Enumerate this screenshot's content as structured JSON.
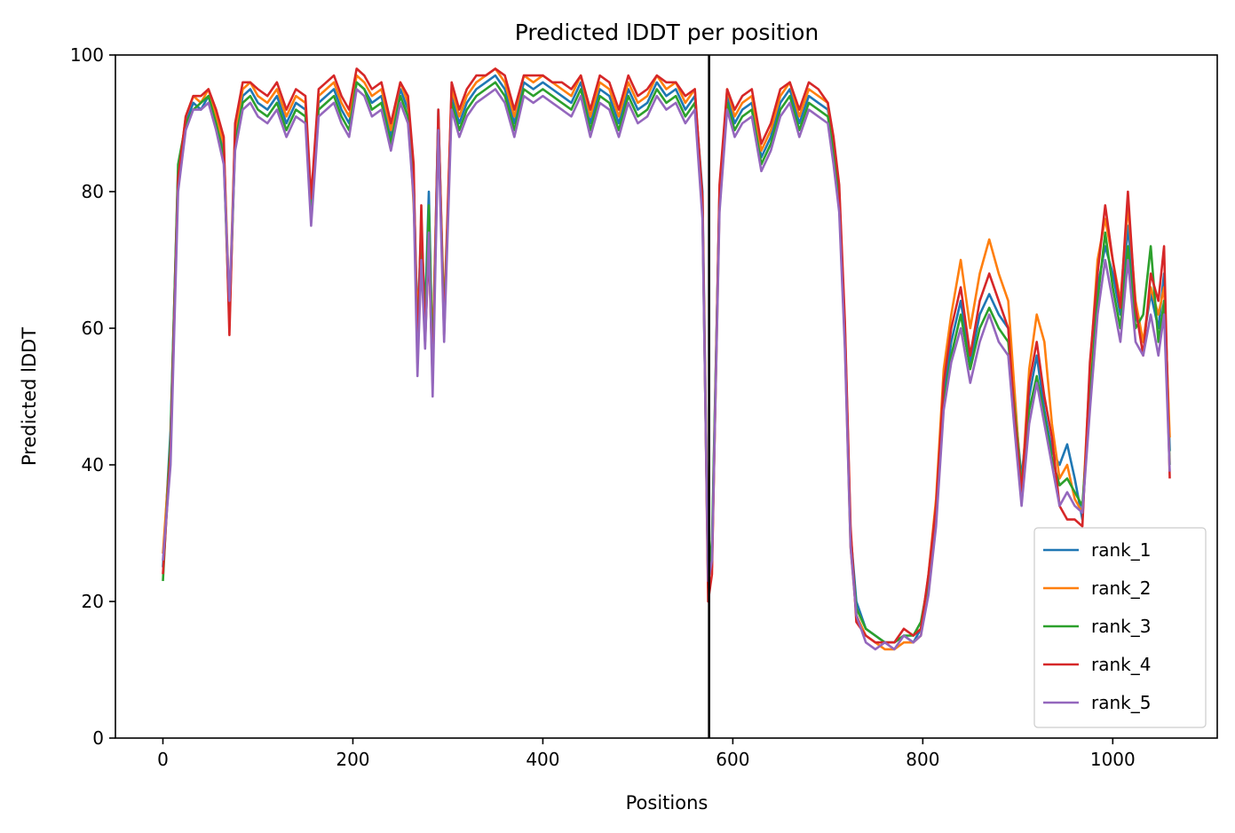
{
  "chart_data": {
    "type": "line",
    "title": "Predicted lDDT per position",
    "xlabel": "Positions",
    "ylabel": "Predicted lDDT",
    "xlim": [
      -50,
      1110
    ],
    "ylim": [
      0,
      100
    ],
    "xticks": [
      0,
      200,
      400,
      600,
      800,
      1000
    ],
    "yticks": [
      0,
      20,
      40,
      60,
      80,
      100
    ],
    "xtick_labels": [
      "0",
      "200",
      "400",
      "600",
      "800",
      "1000"
    ],
    "ytick_labels": [
      "0",
      "20",
      "40",
      "60",
      "80",
      "100"
    ],
    "grid": false,
    "legend_position": "lower-right",
    "chain_boundary_x": 575,
    "boundary_color": "#000000",
    "x": [
      0,
      8,
      16,
      24,
      32,
      40,
      48,
      56,
      64,
      70,
      76,
      84,
      92,
      100,
      110,
      120,
      130,
      140,
      150,
      156,
      164,
      172,
      180,
      188,
      196,
      204,
      212,
      220,
      230,
      240,
      250,
      258,
      264,
      268,
      272,
      276,
      280,
      284,
      290,
      296,
      304,
      312,
      320,
      330,
      340,
      350,
      360,
      370,
      380,
      390,
      400,
      410,
      420,
      430,
      440,
      450,
      460,
      470,
      480,
      490,
      500,
      510,
      520,
      530,
      540,
      550,
      560,
      568,
      574,
      578,
      586,
      594,
      602,
      610,
      620,
      630,
      640,
      650,
      660,
      670,
      680,
      690,
      700,
      706,
      712,
      718,
      724,
      730,
      740,
      750,
      760,
      770,
      780,
      790,
      798,
      806,
      814,
      822,
      830,
      840,
      850,
      860,
      870,
      880,
      890,
      896,
      904,
      912,
      920,
      928,
      936,
      944,
      952,
      960,
      968,
      976,
      984,
      992,
      1000,
      1008,
      1016,
      1024,
      1032,
      1040,
      1048,
      1054,
      1060
    ],
    "series": [
      {
        "name": "rank_1",
        "color": "#1f77b4",
        "values": [
          25,
          45,
          83,
          90,
          93,
          92,
          94,
          90,
          86,
          62,
          88,
          94,
          95,
          93,
          92,
          94,
          90,
          93,
          92,
          77,
          93,
          94,
          95,
          92,
          90,
          96,
          95,
          93,
          94,
          88,
          95,
          92,
          82,
          60,
          75,
          62,
          80,
          55,
          92,
          60,
          94,
          90,
          93,
          95,
          96,
          97,
          95,
          90,
          96,
          95,
          96,
          95,
          94,
          93,
          96,
          90,
          95,
          94,
          90,
          95,
          92,
          93,
          96,
          94,
          95,
          92,
          94,
          80,
          24,
          27,
          80,
          94,
          90,
          92,
          93,
          85,
          88,
          93,
          95,
          90,
          94,
          93,
          92,
          87,
          80,
          60,
          30,
          20,
          16,
          15,
          14,
          14,
          15,
          14,
          16,
          22,
          33,
          50,
          58,
          64,
          55,
          62,
          65,
          62,
          60,
          50,
          38,
          50,
          56,
          48,
          42,
          40,
          43,
          38,
          32,
          52,
          66,
          72,
          68,
          62,
          75,
          62,
          58,
          65,
          60,
          68,
          42
        ]
      },
      {
        "name": "rank_2",
        "color": "#ff7f0e",
        "values": [
          27,
          43,
          82,
          91,
          94,
          93,
          95,
          91,
          87,
          63,
          89,
          95,
          96,
          94,
          93,
          95,
          91,
          94,
          93,
          78,
          94,
          95,
          96,
          93,
          91,
          97,
          96,
          94,
          95,
          89,
          96,
          93,
          78,
          62,
          70,
          60,
          76,
          56,
          91,
          62,
          95,
          91,
          94,
          96,
          97,
          98,
          96,
          91,
          97,
          96,
          97,
          96,
          95,
          94,
          97,
          91,
          96,
          95,
          91,
          96,
          93,
          94,
          97,
          95,
          96,
          93,
          95,
          78,
          25,
          25,
          78,
          95,
          91,
          93,
          94,
          86,
          89,
          94,
          96,
          91,
          95,
          94,
          93,
          85,
          78,
          58,
          28,
          18,
          15,
          14,
          13,
          13,
          14,
          14,
          15,
          24,
          35,
          54,
          62,
          70,
          60,
          68,
          73,
          68,
          64,
          52,
          36,
          54,
          62,
          58,
          46,
          38,
          40,
          35,
          33,
          54,
          70,
          76,
          70,
          64,
          78,
          64,
          58,
          66,
          62,
          66,
          44
        ]
      },
      {
        "name": "rank_3",
        "color": "#2ca02c",
        "values": [
          23,
          44,
          84,
          90,
          92,
          93,
          94,
          90,
          85,
          61,
          87,
          93,
          94,
          92,
          91,
          93,
          89,
          92,
          91,
          76,
          92,
          93,
          94,
          91,
          89,
          96,
          95,
          92,
          93,
          87,
          94,
          91,
          80,
          58,
          72,
          61,
          78,
          54,
          90,
          61,
          93,
          89,
          92,
          94,
          95,
          96,
          94,
          89,
          95,
          94,
          95,
          94,
          93,
          92,
          95,
          89,
          94,
          93,
          89,
          94,
          91,
          92,
          95,
          93,
          94,
          91,
          93,
          77,
          22,
          29,
          79,
          93,
          89,
          91,
          92,
          84,
          87,
          92,
          94,
          89,
          93,
          92,
          91,
          86,
          79,
          59,
          29,
          19,
          16,
          15,
          14,
          14,
          15,
          15,
          17,
          23,
          32,
          49,
          56,
          62,
          54,
          60,
          63,
          60,
          58,
          49,
          37,
          48,
          53,
          47,
          41,
          37,
          38,
          36,
          34,
          50,
          64,
          74,
          66,
          60,
          72,
          60,
          62,
          72,
          58,
          64,
          40
        ]
      },
      {
        "name": "rank_4",
        "color": "#d62728",
        "values": [
          24,
          42,
          82,
          91,
          94,
          94,
          95,
          92,
          88,
          59,
          90,
          96,
          96,
          95,
          94,
          96,
          92,
          95,
          94,
          79,
          95,
          96,
          97,
          94,
          92,
          98,
          97,
          95,
          96,
          90,
          96,
          94,
          84,
          55,
          78,
          58,
          72,
          52,
          92,
          59,
          96,
          92,
          95,
          97,
          97,
          98,
          97,
          92,
          97,
          97,
          97,
          96,
          96,
          95,
          97,
          92,
          97,
          96,
          92,
          97,
          94,
          95,
          97,
          96,
          96,
          94,
          95,
          79,
          20,
          24,
          81,
          95,
          92,
          94,
          95,
          87,
          90,
          95,
          96,
          92,
          96,
          95,
          93,
          88,
          81,
          61,
          31,
          17,
          15,
          14,
          14,
          14,
          16,
          15,
          16,
          24,
          34,
          52,
          60,
          66,
          56,
          64,
          68,
          64,
          60,
          48,
          36,
          52,
          58,
          50,
          44,
          34,
          32,
          32,
          31,
          55,
          68,
          78,
          70,
          63,
          80,
          63,
          56,
          68,
          64,
          72,
          38
        ]
      },
      {
        "name": "rank_5",
        "color": "#9467bd",
        "values": [
          26,
          40,
          80,
          89,
          92,
          92,
          93,
          89,
          84,
          64,
          86,
          92,
          93,
          91,
          90,
          92,
          88,
          91,
          90,
          75,
          91,
          92,
          93,
          90,
          88,
          95,
          94,
          91,
          92,
          86,
          93,
          90,
          79,
          53,
          70,
          57,
          74,
          50,
          89,
          58,
          92,
          88,
          91,
          93,
          94,
          95,
          93,
          88,
          94,
          93,
          94,
          93,
          92,
          91,
          94,
          88,
          93,
          92,
          88,
          93,
          90,
          91,
          94,
          92,
          93,
          90,
          92,
          76,
          23,
          26,
          77,
          92,
          88,
          90,
          91,
          83,
          86,
          91,
          93,
          88,
          92,
          91,
          90,
          84,
          77,
          57,
          28,
          18,
          14,
          13,
          14,
          13,
          15,
          14,
          15,
          21,
          31,
          48,
          55,
          60,
          52,
          58,
          62,
          58,
          56,
          46,
          34,
          46,
          52,
          46,
          40,
          34,
          36,
          34,
          33,
          48,
          62,
          70,
          64,
          58,
          70,
          58,
          56,
          62,
          56,
          62,
          39
        ]
      }
    ]
  }
}
